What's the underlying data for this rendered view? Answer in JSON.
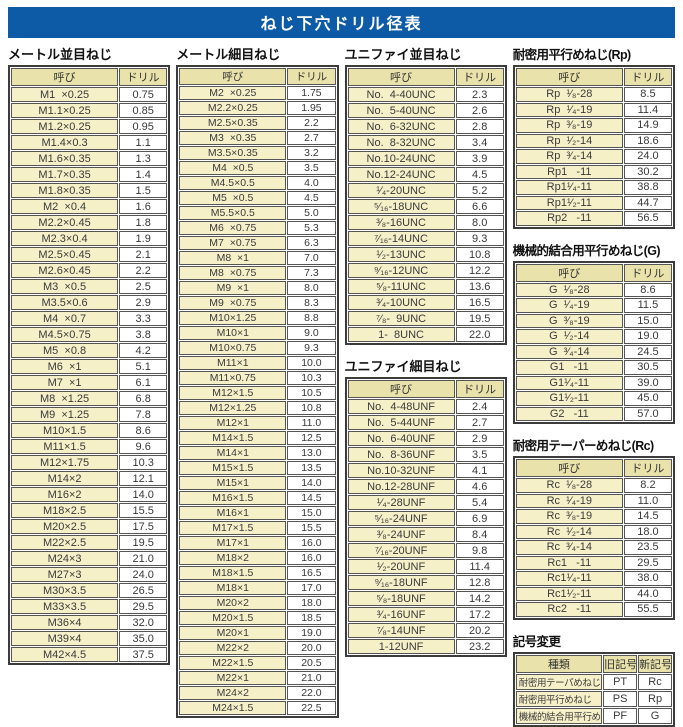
{
  "title": "ねじ下穴ドリル径表",
  "col_headers": {
    "name": "呼び",
    "drill": "ドリル"
  },
  "colors": {
    "title_bar": "#0d5ba6",
    "table_header_bg": "#e9e2ab",
    "name_cell_bg": "#f6f0c8",
    "border": "#3c3c3c"
  },
  "sections": {
    "metric_coarse": {
      "heading": "メートル並目ねじ",
      "rows": [
        [
          "M1  ×0.25",
          "0.75"
        ],
        [
          "M1.1×0.25",
          "0.85"
        ],
        [
          "M1.2×0.25",
          "0.95"
        ],
        [
          "M1.4×0.3",
          "1.1"
        ],
        [
          "M1.6×0.35",
          "1.3"
        ],
        [
          "M1.7×0.35",
          "1.4"
        ],
        [
          "M1.8×0.35",
          "1.5"
        ],
        [
          "M2  ×0.4",
          "1.6"
        ],
        [
          "M2.2×0.45",
          "1.8"
        ],
        [
          "M2.3×0.4",
          "1.9"
        ],
        [
          "M2.5×0.45",
          "2.1"
        ],
        [
          "M2.6×0.45",
          "2.2"
        ],
        [
          "M3  ×0.5",
          "2.5"
        ],
        [
          "M3.5×0.6",
          "2.9"
        ],
        [
          "M4  ×0.7",
          "3.3"
        ],
        [
          "M4.5×0.75",
          "3.8"
        ],
        [
          "M5  ×0.8",
          "4.2"
        ],
        [
          "M6  ×1",
          "5.1"
        ],
        [
          "M7  ×1",
          "6.1"
        ],
        [
          "M8  ×1.25",
          "6.8"
        ],
        [
          "M9  ×1.25",
          "7.8"
        ],
        [
          "M10×1.5",
          "8.6"
        ],
        [
          "M11×1.5",
          "9.6"
        ],
        [
          "M12×1.75",
          "10.3"
        ],
        [
          "M14×2",
          "12.1"
        ],
        [
          "M16×2",
          "14.0"
        ],
        [
          "M18×2.5",
          "15.5"
        ],
        [
          "M20×2.5",
          "17.5"
        ],
        [
          "M22×2.5",
          "19.5"
        ],
        [
          "M24×3",
          "21.0"
        ],
        [
          "M27×3",
          "24.0"
        ],
        [
          "M30×3.5",
          "26.5"
        ],
        [
          "M33×3.5",
          "29.5"
        ],
        [
          "M36×4",
          "32.0"
        ],
        [
          "M39×4",
          "35.0"
        ],
        [
          "M42×4.5",
          "37.5"
        ]
      ]
    },
    "metric_fine": {
      "heading": "メートル細目ねじ",
      "rows": [
        [
          "M2  ×0.25",
          "1.75"
        ],
        [
          "M2.2×0.25",
          "1.95"
        ],
        [
          "M2.5×0.35",
          "2.2"
        ],
        [
          "M3  ×0.35",
          "2.7"
        ],
        [
          "M3.5×0.35",
          "3.2"
        ],
        [
          "M4  ×0.5",
          "3.5"
        ],
        [
          "M4.5×0.5",
          "4.0"
        ],
        [
          "M5  ×0.5",
          "4.5"
        ],
        [
          "M5.5×0.5",
          "5.0"
        ],
        [
          "M6  ×0.75",
          "5.3"
        ],
        [
          "M7  ×0.75",
          "6.3"
        ],
        [
          "M8  ×1",
          "7.0"
        ],
        [
          "M8  ×0.75",
          "7.3"
        ],
        [
          "M9  ×1",
          "8.0"
        ],
        [
          "M9  ×0.75",
          "8.3"
        ],
        [
          "M10×1.25",
          "8.8"
        ],
        [
          "M10×1",
          "9.0"
        ],
        [
          "M10×0.75",
          "9.3"
        ],
        [
          "M11×1",
          "10.0"
        ],
        [
          "M11×0.75",
          "10.3"
        ],
        [
          "M12×1.5",
          "10.5"
        ],
        [
          "M12×1.25",
          "10.8"
        ],
        [
          "M12×1",
          "11.0"
        ],
        [
          "M14×1.5",
          "12.5"
        ],
        [
          "M14×1",
          "13.0"
        ],
        [
          "M15×1.5",
          "13.5"
        ],
        [
          "M15×1",
          "14.0"
        ],
        [
          "M16×1.5",
          "14.5"
        ],
        [
          "M16×1",
          "15.0"
        ],
        [
          "M17×1.5",
          "15.5"
        ],
        [
          "M17×1",
          "16.0"
        ],
        [
          "M18×2",
          "16.0"
        ],
        [
          "M18×1.5",
          "16.5"
        ],
        [
          "M18×1",
          "17.0"
        ],
        [
          "M20×2",
          "18.0"
        ],
        [
          "M20×1.5",
          "18.5"
        ],
        [
          "M20×1",
          "19.0"
        ],
        [
          "M22×2",
          "20.0"
        ],
        [
          "M22×1.5",
          "20.5"
        ],
        [
          "M22×1",
          "21.0"
        ],
        [
          "M24×2",
          "22.0"
        ],
        [
          "M24×1.5",
          "22.5"
        ]
      ]
    },
    "unified_coarse": {
      "heading": "ユニファイ並目ねじ",
      "rows": [
        [
          "No.  4-40UNC",
          "2.3"
        ],
        [
          "No.  5-40UNC",
          "2.6"
        ],
        [
          "No.  6-32UNC",
          "2.8"
        ],
        [
          "No.  8-32UNC",
          "3.4"
        ],
        [
          "No.10-24UNC",
          "3.9"
        ],
        [
          "No.12-24UNC",
          "4.5"
        ],
        [
          "¹⁄₄-20UNC",
          "5.2"
        ],
        [
          "⁵⁄₁₆-18UNC",
          "6.6"
        ],
        [
          "³⁄₈-16UNC",
          "8.0"
        ],
        [
          "⁷⁄₁₆-14UNC",
          "9.3"
        ],
        [
          "¹⁄₂-13UNC",
          "10.8"
        ],
        [
          "⁹⁄₁₆-12UNC",
          "12.2"
        ],
        [
          "⁵⁄₈-11UNC",
          "13.6"
        ],
        [
          "³⁄₄-10UNC",
          "16.5"
        ],
        [
          "⁷⁄₈-  9UNC",
          "19.5"
        ],
        [
          "1-  8UNC",
          "22.0"
        ]
      ]
    },
    "unified_fine": {
      "heading": "ユニファイ細目ねじ",
      "rows": [
        [
          "No.  4-48UNF",
          "2.4"
        ],
        [
          "No.  5-44UNF",
          "2.7"
        ],
        [
          "No.  6-40UNF",
          "2.9"
        ],
        [
          "No.  8-36UNF",
          "3.5"
        ],
        [
          "No.10-32UNF",
          "4.1"
        ],
        [
          "No.12-28UNF",
          "4.6"
        ],
        [
          "¹⁄₄-28UNF",
          "5.4"
        ],
        [
          "⁵⁄₁₆-24UNF",
          "6.9"
        ],
        [
          "³⁄₈-24UNF",
          "8.4"
        ],
        [
          "⁷⁄₁₆-20UNF",
          "9.8"
        ],
        [
          "¹⁄₂-20UNF",
          "11.4"
        ],
        [
          "⁹⁄₁₆-18UNF",
          "12.8"
        ],
        [
          "⁵⁄₈-18UNF",
          "14.2"
        ],
        [
          "³⁄₄-16UNF",
          "17.2"
        ],
        [
          "⁷⁄₈-14UNF",
          "20.2"
        ],
        [
          "1-12UNF",
          "23.2"
        ]
      ]
    },
    "rp": {
      "heading": "耐密用平行めねじ(Rp)",
      "rows": [
        [
          "Rp  ¹⁄₈-28",
          "8.5"
        ],
        [
          "Rp  ¹⁄₄-19",
          "11.4"
        ],
        [
          "Rp  ³⁄₈-19",
          "14.9"
        ],
        [
          "Rp  ¹⁄₂-14",
          "18.6"
        ],
        [
          "Rp  ³⁄₄-14",
          "24.0"
        ],
        [
          "Rp1   -11",
          "30.2"
        ],
        [
          "Rp1¹⁄₄-11",
          "38.8"
        ],
        [
          "Rp1¹⁄₂-11",
          "44.7"
        ],
        [
          "Rp2   -11",
          "56.5"
        ]
      ]
    },
    "g": {
      "heading": "機械的結合用平行めねじ(G)",
      "rows": [
        [
          "G  ¹⁄₈-28",
          "8.6"
        ],
        [
          "G  ¹⁄₄-19",
          "11.5"
        ],
        [
          "G  ³⁄₈-19",
          "15.0"
        ],
        [
          "G  ¹⁄₂-14",
          "19.0"
        ],
        [
          "G  ³⁄₄-14",
          "24.5"
        ],
        [
          "G1   -11",
          "30.5"
        ],
        [
          "G1¹⁄₄-11",
          "39.0"
        ],
        [
          "G1¹⁄₂-11",
          "45.0"
        ],
        [
          "G2   -11",
          "57.0"
        ]
      ]
    },
    "rc": {
      "heading": "耐密用テーパーめねじ(Rc)",
      "rows": [
        [
          "Rc  ¹⁄₈-28",
          "8.2"
        ],
        [
          "Rc  ¹⁄₄-19",
          "11.0"
        ],
        [
          "Rc  ³⁄₈-19",
          "14.5"
        ],
        [
          "Rc  ¹⁄₂-14",
          "18.0"
        ],
        [
          "Rc  ³⁄₄-14",
          "23.5"
        ],
        [
          "Rc1   -11",
          "29.5"
        ],
        [
          "Rc1¹⁄₄-11",
          "38.0"
        ],
        [
          "Rc1¹⁄₂-11",
          "44.0"
        ],
        [
          "Rc2   -11",
          "55.5"
        ]
      ]
    },
    "symbol_change": {
      "heading": "記号変更",
      "headers": [
        "種類",
        "旧記号",
        "新記号"
      ],
      "rows": [
        [
          "耐密用テーパめねじ",
          "PT",
          "Rc"
        ],
        [
          "耐密用平行めねじ",
          "PS",
          "Rp"
        ],
        [
          "機械的結合用平行めねじ",
          "PF",
          "G"
        ]
      ]
    }
  }
}
